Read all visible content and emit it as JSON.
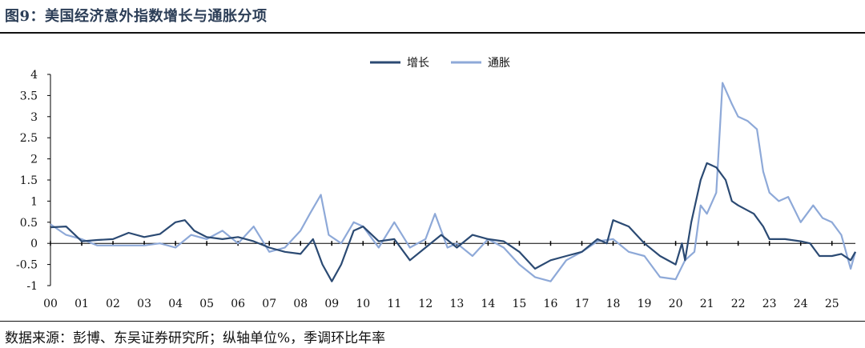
{
  "header": {
    "title": "图9：美国经济意外指数增长与通胀分项"
  },
  "footer": {
    "source": "数据来源：彭博、东吴证券研究所；纵轴单位%，季调环比年率"
  },
  "colors": {
    "growth": "#2b4a73",
    "inflation": "#8ea9d8",
    "axis": "#000000"
  },
  "chart_data": {
    "type": "line",
    "title": "",
    "xlabel": "",
    "ylabel": "",
    "ylim": [
      -1,
      4
    ],
    "yticks": [
      -1,
      -0.5,
      0,
      0.5,
      1,
      1.5,
      2,
      2.5,
      3,
      3.5,
      4
    ],
    "xlim": [
      2000,
      2025.75
    ],
    "xticks": [
      2000,
      2001,
      2002,
      2003,
      2004,
      2005,
      2006,
      2007,
      2008,
      2009,
      2010,
      2011,
      2012,
      2013,
      2014,
      2015,
      2016,
      2017,
      2018,
      2019,
      2020,
      2021,
      2022,
      2023,
      2024,
      2025
    ],
    "xtick_labels": [
      "00",
      "01",
      "02",
      "03",
      "04",
      "05",
      "06",
      "07",
      "08",
      "09",
      "10",
      "11",
      "12",
      "13",
      "14",
      "15",
      "16",
      "17",
      "18",
      "19",
      "20",
      "21",
      "22",
      "23",
      "24",
      "25"
    ],
    "grid": false,
    "legend_position": "top-center",
    "series": [
      {
        "name": "增长",
        "points": [
          [
            2000.0,
            0.38
          ],
          [
            2000.5,
            0.4
          ],
          [
            2001.0,
            0.05
          ],
          [
            2001.5,
            0.08
          ],
          [
            2002.0,
            0.1
          ],
          [
            2002.5,
            0.25
          ],
          [
            2003.0,
            0.15
          ],
          [
            2003.5,
            0.22
          ],
          [
            2004.0,
            0.5
          ],
          [
            2004.3,
            0.55
          ],
          [
            2004.6,
            0.3
          ],
          [
            2005.0,
            0.15
          ],
          [
            2005.5,
            0.1
          ],
          [
            2006.0,
            0.15
          ],
          [
            2006.5,
            0.05
          ],
          [
            2007.0,
            -0.1
          ],
          [
            2007.5,
            -0.2
          ],
          [
            2008.0,
            -0.25
          ],
          [
            2008.4,
            0.1
          ],
          [
            2008.7,
            -0.5
          ],
          [
            2009.0,
            -0.9
          ],
          [
            2009.3,
            -0.5
          ],
          [
            2009.7,
            0.3
          ],
          [
            2010.0,
            0.4
          ],
          [
            2010.5,
            0.05
          ],
          [
            2011.0,
            0.1
          ],
          [
            2011.5,
            -0.4
          ],
          [
            2012.0,
            -0.1
          ],
          [
            2012.5,
            0.2
          ],
          [
            2013.0,
            -0.1
          ],
          [
            2013.5,
            0.2
          ],
          [
            2014.0,
            0.1
          ],
          [
            2014.5,
            0.05
          ],
          [
            2015.0,
            -0.2
          ],
          [
            2015.5,
            -0.6
          ],
          [
            2016.0,
            -0.4
          ],
          [
            2016.5,
            -0.3
          ],
          [
            2017.0,
            -0.2
          ],
          [
            2017.5,
            0.1
          ],
          [
            2017.8,
            0.0
          ],
          [
            2018.0,
            0.55
          ],
          [
            2018.5,
            0.4
          ],
          [
            2019.0,
            0.0
          ],
          [
            2019.5,
            -0.3
          ],
          [
            2020.0,
            -0.5
          ],
          [
            2020.2,
            0.0
          ],
          [
            2020.3,
            -0.4
          ],
          [
            2020.5,
            0.5
          ],
          [
            2020.8,
            1.5
          ],
          [
            2021.0,
            1.9
          ],
          [
            2021.3,
            1.8
          ],
          [
            2021.6,
            1.5
          ],
          [
            2021.8,
            1.0
          ],
          [
            2022.0,
            0.9
          ],
          [
            2022.5,
            0.7
          ],
          [
            2022.8,
            0.4
          ],
          [
            2023.0,
            0.1
          ],
          [
            2023.5,
            0.1
          ],
          [
            2024.0,
            0.05
          ],
          [
            2024.3,
            0.0
          ],
          [
            2024.6,
            -0.3
          ],
          [
            2025.0,
            -0.3
          ],
          [
            2025.3,
            -0.25
          ],
          [
            2025.6,
            -0.4
          ],
          [
            2025.75,
            -0.2
          ]
        ]
      },
      {
        "name": "通胀",
        "points": [
          [
            2000.0,
            0.45
          ],
          [
            2000.5,
            0.2
          ],
          [
            2001.0,
            0.1
          ],
          [
            2001.5,
            -0.05
          ],
          [
            2002.0,
            -0.05
          ],
          [
            2002.5,
            -0.05
          ],
          [
            2003.0,
            -0.05
          ],
          [
            2003.5,
            0.0
          ],
          [
            2004.0,
            -0.1
          ],
          [
            2004.5,
            0.2
          ],
          [
            2005.0,
            0.1
          ],
          [
            2005.5,
            0.3
          ],
          [
            2006.0,
            0.0
          ],
          [
            2006.5,
            0.4
          ],
          [
            2007.0,
            -0.2
          ],
          [
            2007.5,
            -0.1
          ],
          [
            2008.0,
            0.3
          ],
          [
            2008.3,
            0.7
          ],
          [
            2008.65,
            1.15
          ],
          [
            2008.9,
            0.2
          ],
          [
            2009.3,
            0.0
          ],
          [
            2009.7,
            0.5
          ],
          [
            2010.0,
            0.4
          ],
          [
            2010.5,
            -0.1
          ],
          [
            2011.0,
            0.5
          ],
          [
            2011.5,
            -0.1
          ],
          [
            2012.0,
            0.1
          ],
          [
            2012.3,
            0.7
          ],
          [
            2012.7,
            -0.1
          ],
          [
            2013.0,
            0.0
          ],
          [
            2013.5,
            -0.3
          ],
          [
            2014.0,
            0.1
          ],
          [
            2014.5,
            -0.1
          ],
          [
            2015.0,
            -0.5
          ],
          [
            2015.5,
            -0.8
          ],
          [
            2016.0,
            -0.9
          ],
          [
            2016.5,
            -0.4
          ],
          [
            2017.0,
            -0.2
          ],
          [
            2017.5,
            0.05
          ],
          [
            2018.0,
            0.1
          ],
          [
            2018.5,
            -0.2
          ],
          [
            2019.0,
            -0.3
          ],
          [
            2019.5,
            -0.8
          ],
          [
            2020.0,
            -0.85
          ],
          [
            2020.3,
            -0.4
          ],
          [
            2020.6,
            -0.2
          ],
          [
            2020.8,
            0.9
          ],
          [
            2021.0,
            0.7
          ],
          [
            2021.3,
            1.2
          ],
          [
            2021.5,
            3.8
          ],
          [
            2021.8,
            3.3
          ],
          [
            2022.0,
            3.0
          ],
          [
            2022.3,
            2.9
          ],
          [
            2022.6,
            2.7
          ],
          [
            2022.8,
            1.7
          ],
          [
            2023.0,
            1.2
          ],
          [
            2023.3,
            1.0
          ],
          [
            2023.6,
            1.1
          ],
          [
            2024.0,
            0.5
          ],
          [
            2024.4,
            0.9
          ],
          [
            2024.7,
            0.6
          ],
          [
            2025.0,
            0.5
          ],
          [
            2025.3,
            0.2
          ],
          [
            2025.6,
            -0.6
          ],
          [
            2025.75,
            -0.2
          ]
        ]
      }
    ]
  }
}
